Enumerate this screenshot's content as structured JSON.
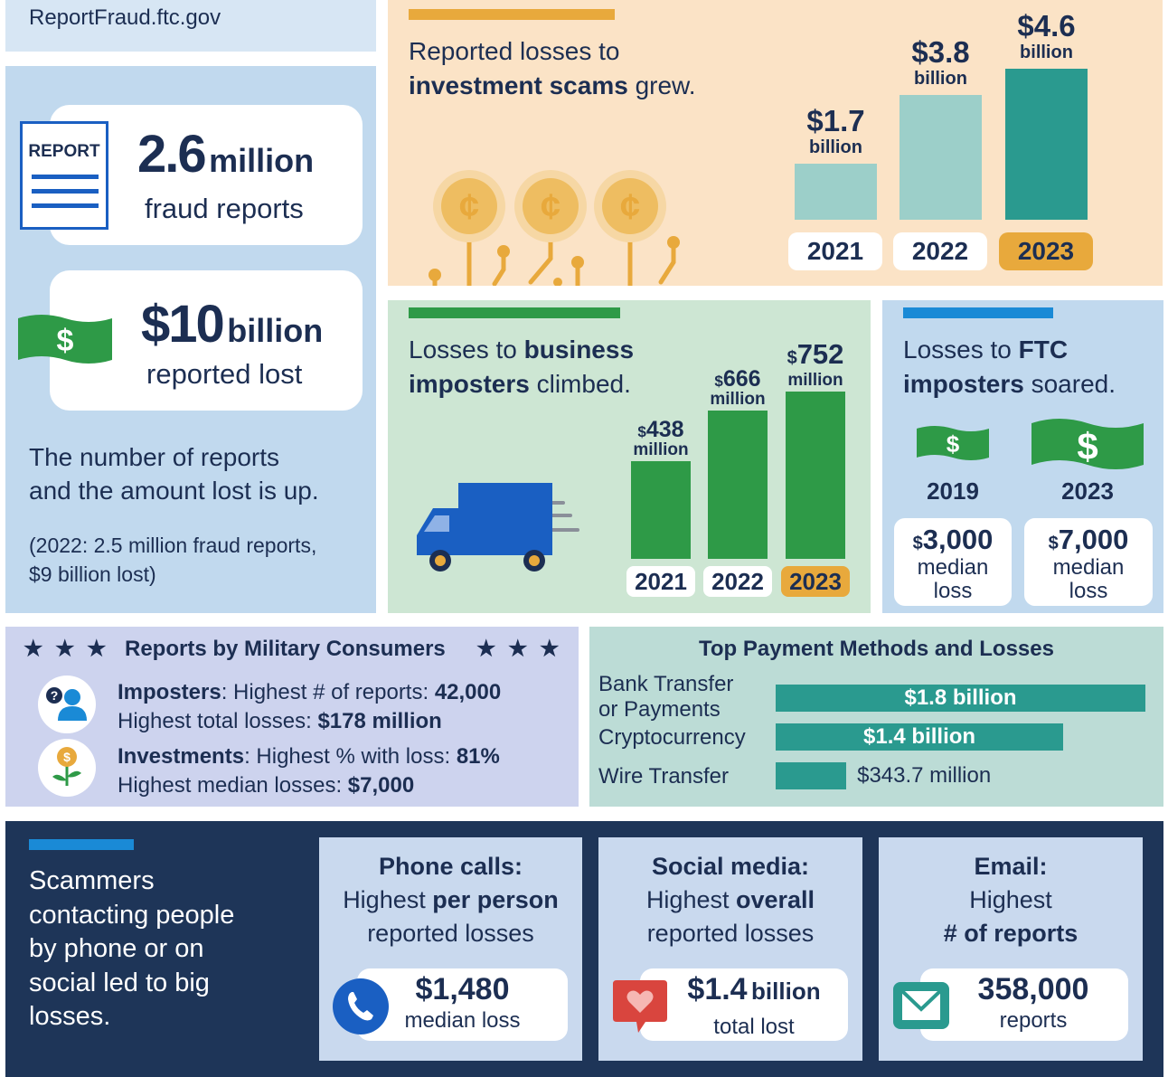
{
  "header": {
    "site": "ReportFraud.ftc.gov"
  },
  "summary": {
    "reports_number": "2.6",
    "reports_unit": "million",
    "reports_label": "fraud reports",
    "report_icon_text": "REPORT",
    "lost_number": "$10",
    "lost_unit": "billion",
    "lost_label": "reported lost",
    "dollar_icon": "$",
    "statement_line1": "The number of reports",
    "statement_line2_pre": "and the ",
    "statement_line2_emph": "amount lost is up.",
    "prior_line1": "(2022: 2.5 million fraud reports,",
    "prior_line2": "$9 billion lost)"
  },
  "investment": {
    "title_line1": "Reported losses to",
    "title_emph": "investment scams",
    "title_end": " grew.",
    "coin_symbol": "¢",
    "chart_data": {
      "type": "bar",
      "categories": [
        "2021",
        "2022",
        "2023"
      ],
      "values": [
        1.7,
        3.8,
        4.6
      ],
      "value_labels": [
        "$1.7",
        "$3.8",
        "$4.6"
      ],
      "unit_label": "billion",
      "highlight": "2023",
      "colors": [
        "#9ccfc9",
        "#9ccfc9",
        "#2a9a8f"
      ]
    }
  },
  "business": {
    "title_pre": "Losses to ",
    "title_emph1": "business",
    "title_emph2": "imposters",
    "title_end": " climbed.",
    "chart_data": {
      "type": "bar",
      "categories": [
        "2021",
        "2022",
        "2023"
      ],
      "values": [
        438,
        666,
        752
      ],
      "value_labels": [
        "438",
        "666",
        "752"
      ],
      "currency": "$",
      "unit_label": "million",
      "highlight": "2023",
      "color": "#2e9a47"
    }
  },
  "ftc": {
    "title_pre": "Losses to ",
    "title_emph1": "FTC",
    "title_emph2": "imposters",
    "title_end": " soared.",
    "dollar_icon": "$",
    "years": [
      {
        "year": "2019",
        "currency": "$",
        "amount": "3,000",
        "label1": "median",
        "label2": "loss"
      },
      {
        "year": "2023",
        "currency": "$",
        "amount": "7,000",
        "label1": "median",
        "label2": "loss"
      }
    ]
  },
  "military": {
    "title": "Reports by Military Consumers",
    "star": "★",
    "imposters_label": "Imposters",
    "imposters_text1": ": Highest # of reports: ",
    "imposters_val1": "42,000",
    "imposters_text2": "Highest total losses: ",
    "imposters_val2": "$178 million",
    "investments_label": "Investments",
    "investments_text1": ": Highest % with loss: ",
    "investments_val1": "81%",
    "investments_text2": "Highest median losses: ",
    "investments_val2": "$7,000",
    "imposter_icon_glyph": "?",
    "investment_icon_glyph": "$"
  },
  "payment": {
    "title": "Top Payment Methods and Losses",
    "chart_data": {
      "type": "bar",
      "orientation": "horizontal",
      "categories": [
        "Bank Transfer or Payments",
        "Cryptocurrency",
        "Wire Transfer"
      ],
      "category_lines": [
        [
          "Bank Transfer",
          "or Payments"
        ],
        [
          "Cryptocurrency"
        ],
        [
          "Wire Transfer"
        ]
      ],
      "values": [
        1.8,
        1.4,
        0.3437
      ],
      "value_labels": [
        "$1.8 billion",
        "$1.4 billion",
        "$343.7 million"
      ],
      "color": "#2a9a8f"
    }
  },
  "contact": {
    "intro_lines": [
      "Scammers",
      "contacting people",
      "by phone or on",
      "social led to big",
      "losses."
    ],
    "cards": [
      {
        "head1": "Phone calls:",
        "head2_pre": "Highest ",
        "head2_emph": "per person",
        "head3": "reported losses",
        "value": "$1,480",
        "value_unit": "",
        "value_label": "median loss",
        "icon": "phone-icon"
      },
      {
        "head1": "Social media:",
        "head2_pre": "Highest ",
        "head2_emph": "overall",
        "head3": "reported losses",
        "value": "$1.4",
        "value_unit": "billion",
        "value_label": "total lost",
        "icon": "heart-chat-icon"
      },
      {
        "head1": "Email:",
        "head2_pre": "Highest",
        "head2_emph": "",
        "head3": "# of reports",
        "value": "358,000",
        "value_unit": "",
        "value_label": "reports",
        "icon": "envelope-icon"
      }
    ]
  },
  "colors": {
    "navy": "#1c2e52",
    "light_blue": "#c1d9ee",
    "peach": "#fbe3c6",
    "mint": "#cde6d3",
    "teal": "#2a9a8f",
    "light_teal": "#9ccfc9",
    "green": "#2e9a47",
    "gold": "#e8a93c",
    "lavender": "#cdd3ee",
    "dark_navy": "#1e3558"
  }
}
